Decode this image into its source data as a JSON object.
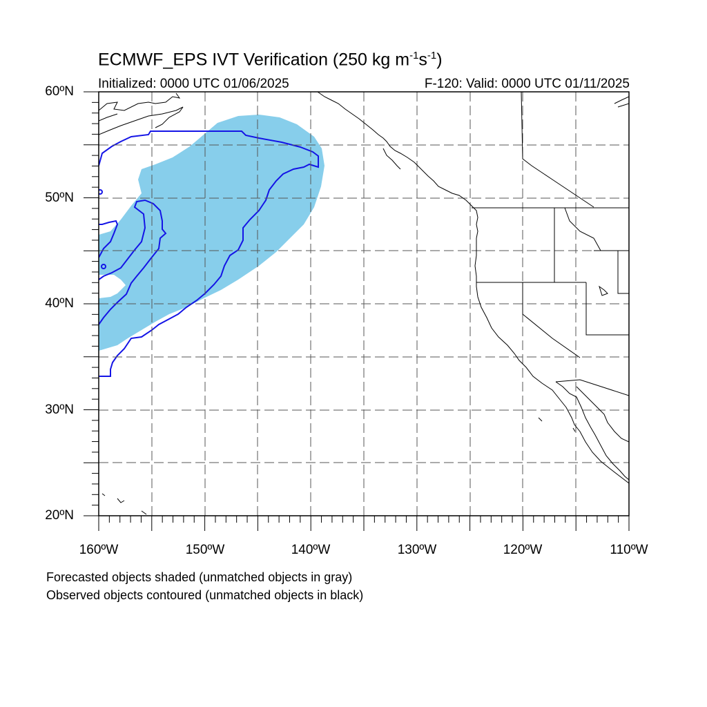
{
  "title": {
    "main": "ECMWF_EPS IVT Verification (250 kg m",
    "exp1": "-1",
    "mid": "s",
    "exp2": "-1",
    "end": ")"
  },
  "subtitle": {
    "initialized": "Initialized: 0000 UTC 01/06/2025",
    "valid": "F-120: Valid: 0000 UTC 01/11/2025"
  },
  "axes": {
    "lat_labels": [
      "60ºN",
      "50ºN",
      "40ºN",
      "30ºN",
      "20ºN"
    ],
    "lon_labels": [
      "160ºW",
      "150ºW",
      "140ºW",
      "130ºW",
      "120ºW",
      "110ºW"
    ],
    "lat_range": [
      20,
      60
    ],
    "lon_range": [
      -160,
      -110
    ],
    "grid": "dashed every 5 degrees"
  },
  "legend": {
    "line1": "Forecasted objects shaded (unmatched objects in gray)",
    "line2": "Observed objects contoured (unmatched objects in black)"
  },
  "colors": {
    "forecast_fill": "#87ceeb",
    "observed_contour": "#1414e6",
    "coastline": "#000000",
    "grid": "#555555"
  }
}
